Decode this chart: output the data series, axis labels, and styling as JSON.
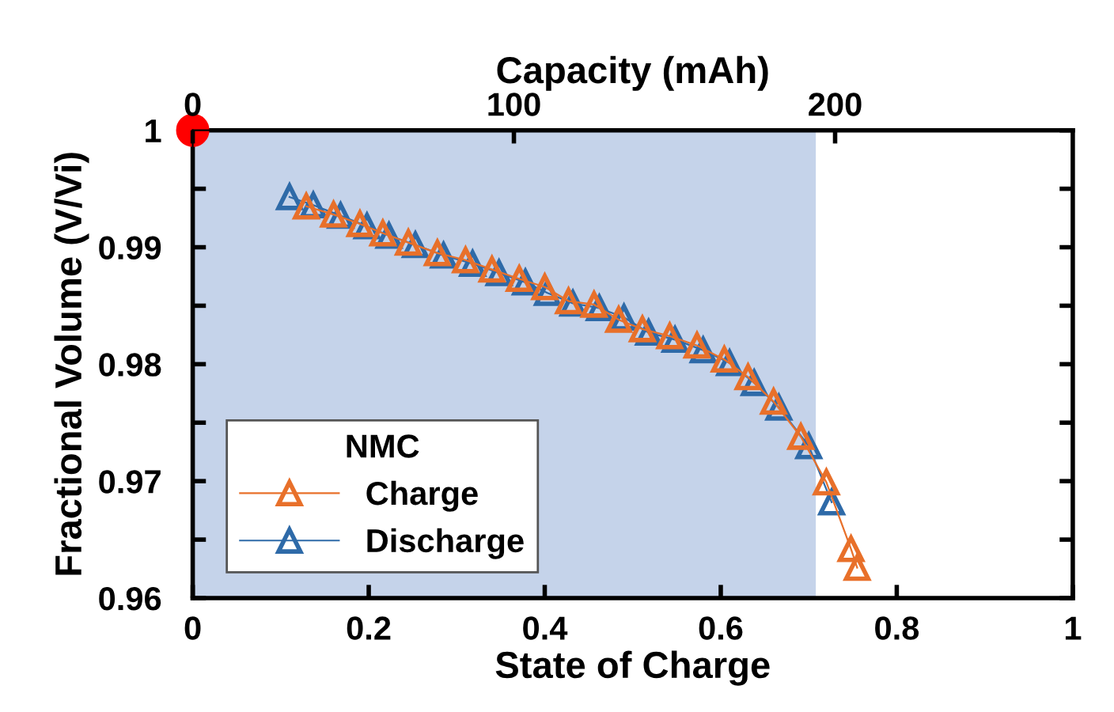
{
  "chart_data": {
    "type": "line",
    "xlabel": "State of Charge",
    "ylabel": "Fractional Volume (V/Vi)",
    "x2label": "Capacity (mAh)",
    "legend_title": "NMC",
    "legend": "bottom left",
    "marker": "triangle",
    "line_style": "solid",
    "grid": false,
    "xlim": [
      0,
      1
    ],
    "xticks": [
      0,
      0.2,
      0.4,
      0.6,
      0.8,
      1
    ],
    "x2lim": [
      0,
      274
    ],
    "x2ticks": [
      0,
      100,
      200
    ],
    "ylim": [
      0.96,
      1.0
    ],
    "yticks": [
      0.96,
      {
        "value": 0.965,
        "label": null
      },
      0.97,
      {
        "value": 0.975,
        "label": null
      },
      0.98,
      {
        "value": 0.985,
        "label": null
      },
      0.99,
      {
        "value": 0.995,
        "label": null
      },
      1
    ],
    "tick_labels": "xy",
    "bands": [
      {
        "axis": "x",
        "from": 0,
        "to": 0.708,
        "label": null,
        "color": "#c5d3ea"
      }
    ],
    "series": [
      {
        "name": "Charge",
        "color": "#e8702a",
        "x": [
          0.129,
          0.16,
          0.19,
          0.216,
          0.245,
          0.278,
          0.31,
          0.34,
          0.371,
          0.4,
          0.427,
          0.456,
          0.484,
          0.511,
          0.542,
          0.573,
          0.604,
          0.631,
          0.66,
          0.691,
          0.72,
          0.748,
          0.755
        ],
        "values": [
          0.9935,
          0.9928,
          0.992,
          0.9912,
          0.9904,
          0.9895,
          0.9889,
          0.9881,
          0.9873,
          0.9866,
          0.9854,
          0.9851,
          0.9838,
          0.983,
          0.9824,
          0.9816,
          0.9804,
          0.9789,
          0.9768,
          0.9738,
          0.9699,
          0.9642,
          0.9626
        ]
      },
      {
        "name": "Discharge",
        "color": "#2e6aa8",
        "x": [
          0.11,
          0.137,
          0.168,
          0.198,
          0.223,
          0.253,
          0.285,
          0.318,
          0.348,
          0.378,
          0.403,
          0.432,
          0.462,
          0.49,
          0.518,
          0.548,
          0.58,
          0.61,
          0.638,
          0.666,
          0.7,
          0.726
        ],
        "values": [
          0.9943,
          0.9936,
          0.9927,
          0.9918,
          0.991,
          0.9902,
          0.9893,
          0.9886,
          0.9878,
          0.987,
          0.9861,
          0.9852,
          0.9848,
          0.984,
          0.9827,
          0.9821,
          0.9812,
          0.9801,
          0.9784,
          0.9763,
          0.973,
          0.9682
        ]
      },
      {
        "type": "scatter",
        "color": "#ff0000",
        "marker": "circle",
        "x": [
          0
        ],
        "values": [
          1
        ]
      }
    ]
  }
}
